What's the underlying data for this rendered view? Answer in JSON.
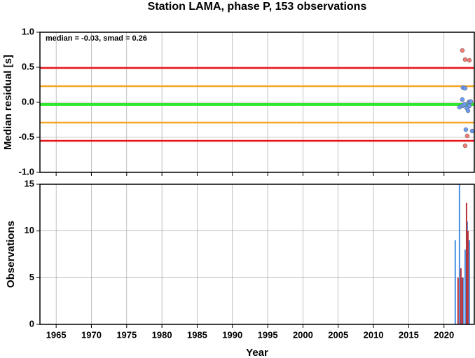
{
  "chart_data": [
    {
      "type": "scatter",
      "title": "Station LAMA, phase P, 153 observations",
      "y_label": "Median residual [s]",
      "annotation": "median = -0.03, smad = 0.26",
      "xlim": [
        1962.7,
        2024.3
      ],
      "ylim": [
        -1,
        1
      ],
      "yticks": [
        {
          "value": 1,
          "label": "1.0"
        },
        {
          "value": 0.5,
          "label": "0.5"
        },
        {
          "value": 0,
          "label": "0.0"
        },
        {
          "value": -0.5,
          "label": "-0.5"
        },
        {
          "value": -1,
          "label": "-1.0"
        }
      ],
      "grid": true,
      "hlines": [
        {
          "value": 0.49,
          "color": "#e8141b"
        },
        {
          "value": 0.23,
          "color": "#f5a623"
        },
        {
          "value": -0.03,
          "color": "#2ee82e"
        },
        {
          "value": -0.29,
          "color": "#f5a623"
        },
        {
          "value": -0.55,
          "color": "#e8141b"
        }
      ],
      "series": [
        {
          "color": "#f47a72",
          "x": [
            2022.6,
            2023.0,
            2023.6,
            2023.3,
            2023.0
          ],
          "values": [
            0.74,
            0.61,
            0.6,
            -0.48,
            -0.62
          ]
        },
        {
          "color": "#6b9bf2",
          "x": [
            2022.2,
            2022.6,
            2022.6,
            2022.7,
            2023.0,
            2022.9,
            2023.2,
            2023.4,
            2023.5,
            2023.7,
            2023.6,
            2023.1,
            2024.0,
            2023.8
          ],
          "values": [
            -0.07,
            -0.05,
            0.04,
            0.21,
            0.2,
            -0.03,
            -0.08,
            -0.12,
            0.0,
            0.01,
            -0.05,
            -0.39,
            -0.41,
            0.01
          ]
        }
      ]
    },
    {
      "type": "bar",
      "x_label": "Year",
      "y_label": "Observations",
      "xlim": [
        1962.7,
        2024.3
      ],
      "ylim": [
        0,
        15
      ],
      "xticks": [
        1965,
        1970,
        1975,
        1980,
        1985,
        1990,
        1995,
        2000,
        2005,
        2010,
        2015,
        2020
      ],
      "yticks": [
        0,
        5,
        10,
        15
      ],
      "grid": true,
      "series": [
        {
          "color": "#4a90e2",
          "x": [
            2021.6,
            2022.2,
            2022.7,
            2023.0,
            2023.3,
            2023.6
          ],
          "values": [
            9,
            15,
            5,
            8,
            11,
            9
          ]
        },
        {
          "color": "#b5343a",
          "x": [
            2022.0,
            2022.4,
            2022.6,
            2023.2,
            2023.4
          ],
          "values": [
            5,
            6,
            5,
            13,
            10
          ]
        }
      ]
    }
  ]
}
